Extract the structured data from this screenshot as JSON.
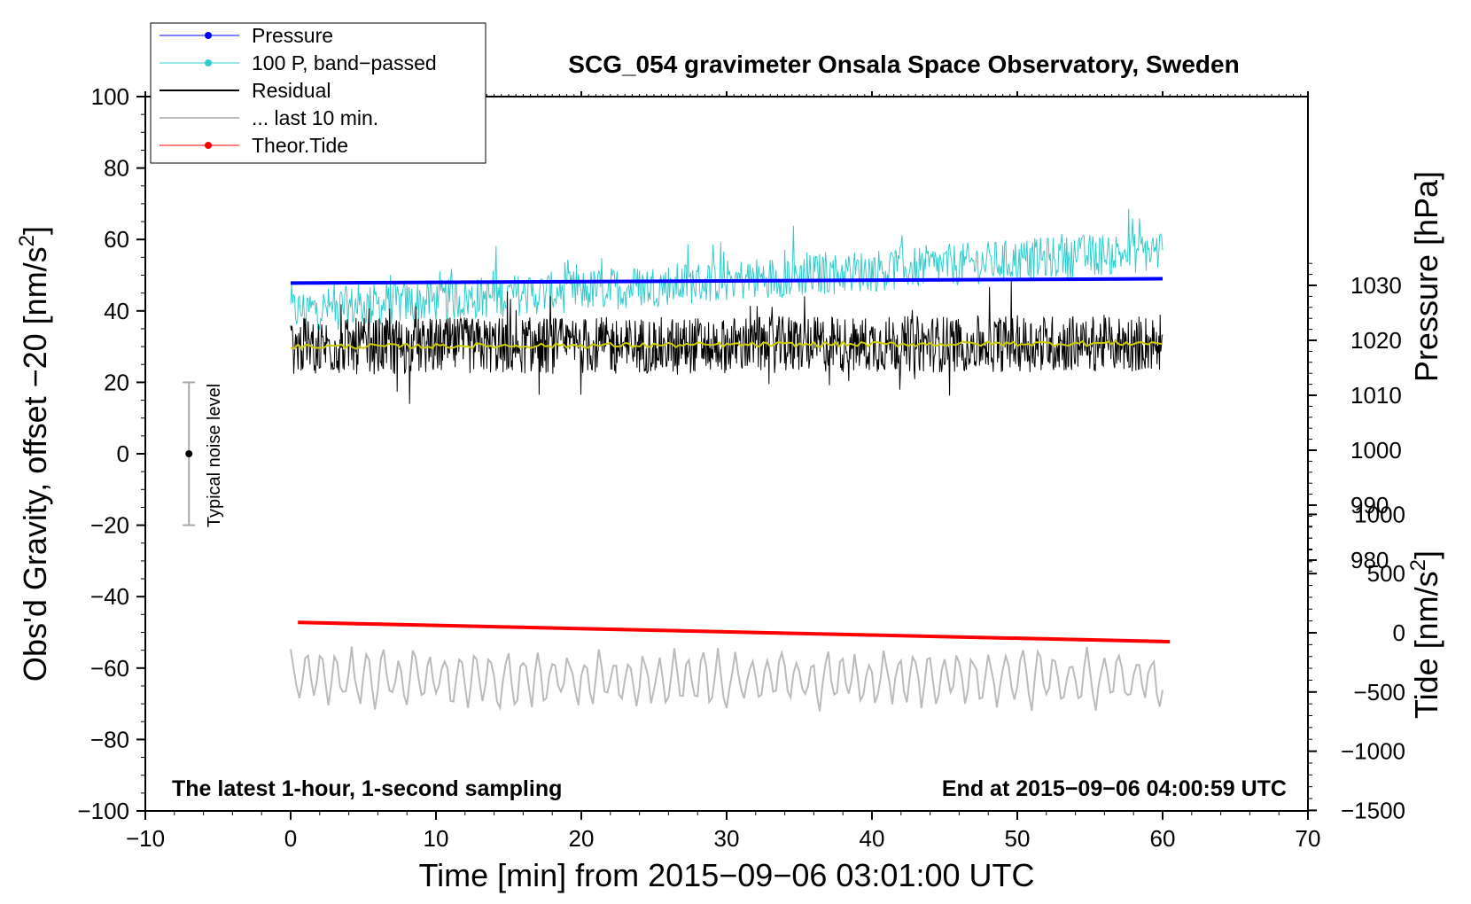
{
  "chart_data": {
    "type": "line",
    "title": "SCG_054 gravimeter Onsala Space Observatory, Sweden",
    "xlabel": "Time [min] from 2015−09−06 03:01:00 UTC",
    "ylabel_left": "Obs'd Gravity, offset −20 [nm/s",
    "ylabel_left_sup": "2",
    "ylabel_left_end": "]",
    "ylabel_pressure": "Pressure [hPa]",
    "ylabel_tide": "Tide [nm/s",
    "ylabel_tide_sup": "2",
    "ylabel_tide_end": "]",
    "xlim": [
      -10,
      70
    ],
    "ylim": [
      -100,
      100
    ],
    "x_ticks": [
      "−10",
      "0",
      "10",
      "20",
      "30",
      "40",
      "50",
      "60",
      "70"
    ],
    "y_ticks": [
      "100",
      "80",
      "60",
      "40",
      "20",
      "0",
      "−20",
      "−40",
      "−60",
      "−80",
      "−100"
    ],
    "pressure_ticks": [
      "1030",
      "1020",
      "1010",
      "1000",
      "990",
      "980"
    ],
    "pressure_tick_values": [
      1030,
      1020,
      1010,
      1000,
      990,
      980
    ],
    "tide_ticks": [
      "1000",
      "500",
      "0",
      "−500",
      "−1000",
      "−1500"
    ],
    "tide_tick_values": [
      1000,
      500,
      0,
      -500,
      -1000,
      -1500
    ],
    "annotation_left": "The latest 1-hour, 1-second sampling",
    "annotation_right": "End at 2015−09−06 04:00:59 UTC",
    "noise_label": "Typical noise level",
    "noise_bar": {
      "x": -7,
      "center": 0,
      "low": -20,
      "high": 20
    },
    "legend": [
      {
        "label": "Pressure",
        "color": "#0000ff",
        "marker": true
      },
      {
        "label": "100 P, band−passed",
        "color": "#33cccc",
        "marker": true
      },
      {
        "label": "Residual",
        "color": "#000000",
        "marker": false
      },
      {
        "label": "... last 10 min.",
        "color": "#bbbbbb",
        "marker": false
      },
      {
        "label": "Theor.Tide",
        "color": "#ff0000",
        "marker": true
      }
    ],
    "series": [
      {
        "name": "Pressure",
        "color": "#0000ff",
        "x": [
          0,
          60
        ],
        "y": [
          47.8,
          49.0
        ]
      },
      {
        "name": "100 P, band−passed",
        "color": "#33cccc",
        "x_range": [
          0,
          60
        ],
        "y_start": 40,
        "y_end": 57,
        "amplitude": 6
      },
      {
        "name": "Residual",
        "color": "#000000",
        "x_range": [
          0,
          60
        ],
        "center": 30,
        "amplitude": 8
      },
      {
        "name": "Residual smoothed",
        "color": "#cccc00",
        "x": [
          0,
          60
        ],
        "y": [
          30,
          31
        ]
      },
      {
        "name": "... last 10 min.",
        "color": "#bbbbbb",
        "x_range": [
          0,
          60
        ],
        "center": -63,
        "amplitude": 7
      },
      {
        "name": "Theor.Tide",
        "color": "#ff0000",
        "x": [
          0.5,
          60.5
        ],
        "y": [
          -47.2,
          -52.6
        ]
      }
    ]
  }
}
